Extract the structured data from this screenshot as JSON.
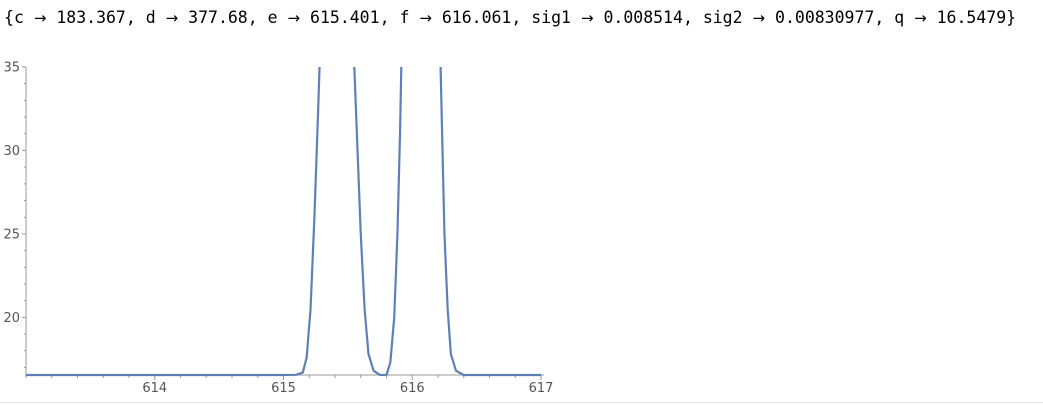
{
  "output": {
    "open_brace": "{",
    "close_brace": "}",
    "arrow": "→",
    "separator": ", ",
    "rules": [
      {
        "name": "c",
        "value": "183.367"
      },
      {
        "name": "d",
        "value": "377.68"
      },
      {
        "name": "e",
        "value": "615.401"
      },
      {
        "name": "f",
        "value": "616.061"
      },
      {
        "name": "sig1",
        "value": "0.008514"
      },
      {
        "name": "sig2",
        "value": "0.00830977"
      },
      {
        "name": "q",
        "value": "16.5479"
      }
    ]
  },
  "chart_data": {
    "type": "line",
    "title": "",
    "xlabel": "",
    "ylabel": "",
    "xlim": [
      613.0,
      617.0
    ],
    "ylim": [
      16.5479,
      35.0
    ],
    "x_ticks": [
      {
        "value": 614,
        "label": "614"
      },
      {
        "value": 615,
        "label": "615"
      },
      {
        "value": 616,
        "label": "616"
      },
      {
        "value": 617,
        "label": "617"
      }
    ],
    "y_ticks": [
      {
        "value": 20,
        "label": "20"
      },
      {
        "value": 25,
        "label": "25"
      },
      {
        "value": 30,
        "label": "30"
      },
      {
        "value": 35,
        "label": "35"
      }
    ],
    "grid": false,
    "line_color": "#5e81b5",
    "axis_color": "#999999",
    "series": [
      {
        "values": [
          [
            613.0,
            16.5479
          ],
          [
            615.0,
            16.5479
          ],
          [
            615.1,
            16.56
          ],
          [
            615.15,
            16.7
          ],
          [
            615.18,
            17.6
          ],
          [
            615.21,
            20.5
          ],
          [
            615.24,
            26.0
          ],
          [
            615.265,
            31.5
          ],
          [
            615.28,
            35.0
          ]
        ]
      },
      {
        "values": [
          [
            615.55,
            35.0
          ],
          [
            615.575,
            30.0
          ],
          [
            615.6,
            25.0
          ],
          [
            615.63,
            20.5
          ],
          [
            615.66,
            17.8
          ],
          [
            615.7,
            16.8
          ],
          [
            615.75,
            16.5479
          ],
          [
            615.8,
            16.56
          ],
          [
            615.83,
            17.3
          ],
          [
            615.86,
            20.0
          ],
          [
            615.885,
            25.0
          ],
          [
            615.905,
            31.0
          ],
          [
            615.915,
            35.0
          ]
        ]
      },
      {
        "values": [
          [
            616.22,
            35.0
          ],
          [
            616.235,
            30.0
          ],
          [
            616.25,
            25.0
          ],
          [
            616.275,
            20.5
          ],
          [
            616.3,
            17.8
          ],
          [
            616.34,
            16.8
          ],
          [
            616.4,
            16.5479
          ],
          [
            617.0,
            16.5479
          ]
        ]
      }
    ]
  }
}
